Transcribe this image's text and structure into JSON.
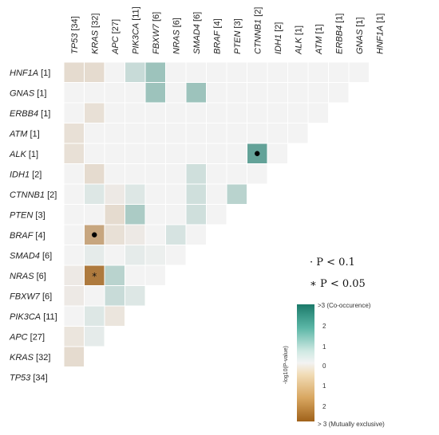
{
  "chart_data": {
    "type": "heatmap",
    "x_categories": [
      "TP53 [34]",
      "KRAS [32]",
      "APC [27]",
      "PIK3CA [11]",
      "FBXW7 [6]",
      "NRAS [6]",
      "SMAD4 [6]",
      "BRAF [4]",
      "PTEN [3]",
      "CTNNB1 [2]",
      "IDH1 [2]",
      "ALK [1]",
      "ATM [1]",
      "ERBB4 [1]",
      "GNAS [1]",
      "HNF1A [1]"
    ],
    "y_categories": [
      "HNF1A [1]",
      "GNAS [1]",
      "ERBB4 [1]",
      "ATM [1]",
      "ALK [1]",
      "IDH1 [2]",
      "CTNNB1 [2]",
      "PTEN [3]",
      "BRAF [4]",
      "SMAD4 [6]",
      "NRAS [6]",
      "FBXW7 [6]",
      "PIK3CA [11]",
      "APC [27]",
      "KRAS [32]",
      "TP53 [34]"
    ],
    "values": [
      [
        -0.5,
        -0.5,
        0,
        0.6,
        1.2,
        0,
        0,
        0,
        0,
        0,
        0,
        0,
        0,
        0,
        0
      ],
      [
        0,
        0,
        0,
        0,
        1.2,
        0,
        1.2,
        0,
        0,
        0,
        0,
        0,
        0,
        0
      ],
      [
        0,
        -0.4,
        0,
        0,
        0,
        0,
        0,
        0,
        0,
        0,
        0,
        0,
        0
      ],
      [
        -0.4,
        0,
        0,
        0,
        0,
        0,
        0,
        0,
        0,
        0,
        0,
        0
      ],
      [
        -0.4,
        0,
        0,
        0,
        0,
        0,
        0,
        0,
        0,
        2.0,
        0
      ],
      [
        0,
        -0.5,
        0,
        0,
        0,
        0,
        0.5,
        0,
        0,
        0
      ],
      [
        0,
        0.3,
        -0.2,
        0.3,
        0,
        0,
        0.5,
        0,
        0.8
      ],
      [
        0,
        0,
        -0.5,
        1.0,
        0,
        0,
        0.5,
        0
      ],
      [
        0,
        -1.6,
        -0.4,
        -0.2,
        0,
        0.4,
        0
      ],
      [
        0,
        0.2,
        0,
        0.2,
        0.1,
        0
      ],
      [
        -0.2,
        -2.5,
        0.8,
        0,
        0
      ],
      [
        -0.2,
        0,
        0.6,
        0.3
      ],
      [
        0,
        0.3,
        -0.3
      ],
      [
        -0.3,
        0.2
      ],
      [
        -0.5
      ],
      []
    ],
    "significance": [
      {
        "row": "ALK [1]",
        "col": "CTNNB1 [2]",
        "mark": "dot"
      },
      {
        "row": "BRAF [4]",
        "col": "KRAS [32]",
        "mark": "dot"
      },
      {
        "row": "NRAS [6]",
        "col": "KRAS [32]",
        "mark": "star"
      }
    ],
    "legend": {
      "p01": "· P < 0.1",
      "p005": "∗ P < 0.05",
      "colorbar_title": "-log10(P-value)",
      "colorbar_ticks": [
        "2",
        "1",
        "0",
        "1",
        "2"
      ],
      "colorbar_top": ">3 (Co-occurence)",
      "colorbar_bottom": "> 3 (Mutually exclusive)",
      "range": [
        -3,
        3
      ],
      "colors": {
        "cooccur_max": "#1b7a6a",
        "neutral": "#f3f3f3",
        "exclusive_max": "#a0621a"
      }
    }
  }
}
